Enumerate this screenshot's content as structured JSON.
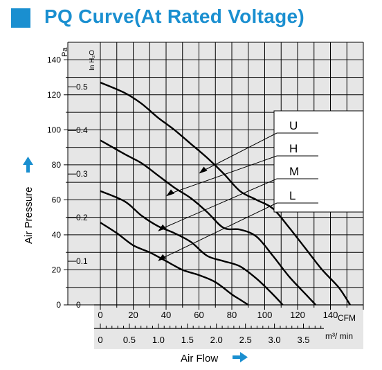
{
  "header": {
    "title": "PQ Curve(At Rated Voltage)"
  },
  "colors": {
    "accent": "#1a8fd0",
    "background": "#e6e6e6",
    "curve": "#000000",
    "grid": "#000000"
  },
  "chart_data": {
    "type": "line",
    "title": "PQ Curve(At Rated Voltage)",
    "xlabel": "Air Flow",
    "ylabel": "Air Pressure",
    "x_unit_primary": "CFM",
    "x_unit_secondary": "m³/ min",
    "y_unit_primary": "Pa",
    "y_unit_secondary": "In H₂O",
    "xlim": [
      0,
      160
    ],
    "ylim": [
      0,
      150
    ],
    "x_ticks": [
      "0",
      "20",
      "40",
      "60",
      "80",
      "100",
      "120",
      "140"
    ],
    "x_ticks_secondary": [
      "0",
      "0.5",
      "1.0",
      "1.5",
      "2.0",
      "2.5",
      "3.0",
      "3.5"
    ],
    "y_ticks": [
      "0",
      "20",
      "40",
      "60",
      "80",
      "100",
      "120",
      "140"
    ],
    "y_ticks_secondary": [
      "0",
      "0.1",
      "0.2",
      "0.3",
      "0.4",
      "0.5"
    ],
    "grid": true,
    "legend": "right",
    "series": [
      {
        "name": "U",
        "x": [
          0,
          15,
          25,
          35,
          45,
          55,
          65,
          75,
          85,
          95,
          105,
          115,
          125,
          135,
          145,
          152
        ],
        "y": [
          127,
          121,
          115,
          107,
          100,
          92,
          84,
          75,
          65,
          60,
          55,
          44,
          32,
          20,
          10,
          0
        ]
      },
      {
        "name": "H",
        "x": [
          0,
          15,
          25,
          35,
          45,
          55,
          65,
          75,
          85,
          95,
          105,
          115,
          125,
          131
        ],
        "y": [
          94,
          86,
          81,
          74,
          67,
          61,
          53,
          44,
          43,
          39,
          28,
          16,
          6,
          0
        ]
      },
      {
        "name": "M",
        "x": [
          0,
          15,
          25,
          35,
          45,
          55,
          65,
          75,
          85,
          95,
          105,
          111
        ],
        "y": [
          65,
          59,
          51,
          45,
          41,
          36,
          28,
          25,
          22,
          15,
          6,
          0
        ]
      },
      {
        "name": "L",
        "x": [
          0,
          10,
          20,
          30,
          40,
          50,
          60,
          70,
          80,
          85,
          90
        ],
        "y": [
          47,
          41,
          34,
          30,
          25,
          20,
          17,
          13,
          6,
          3,
          0
        ]
      }
    ],
    "legend_entries": [
      "U",
      "H",
      "M",
      "L"
    ]
  }
}
